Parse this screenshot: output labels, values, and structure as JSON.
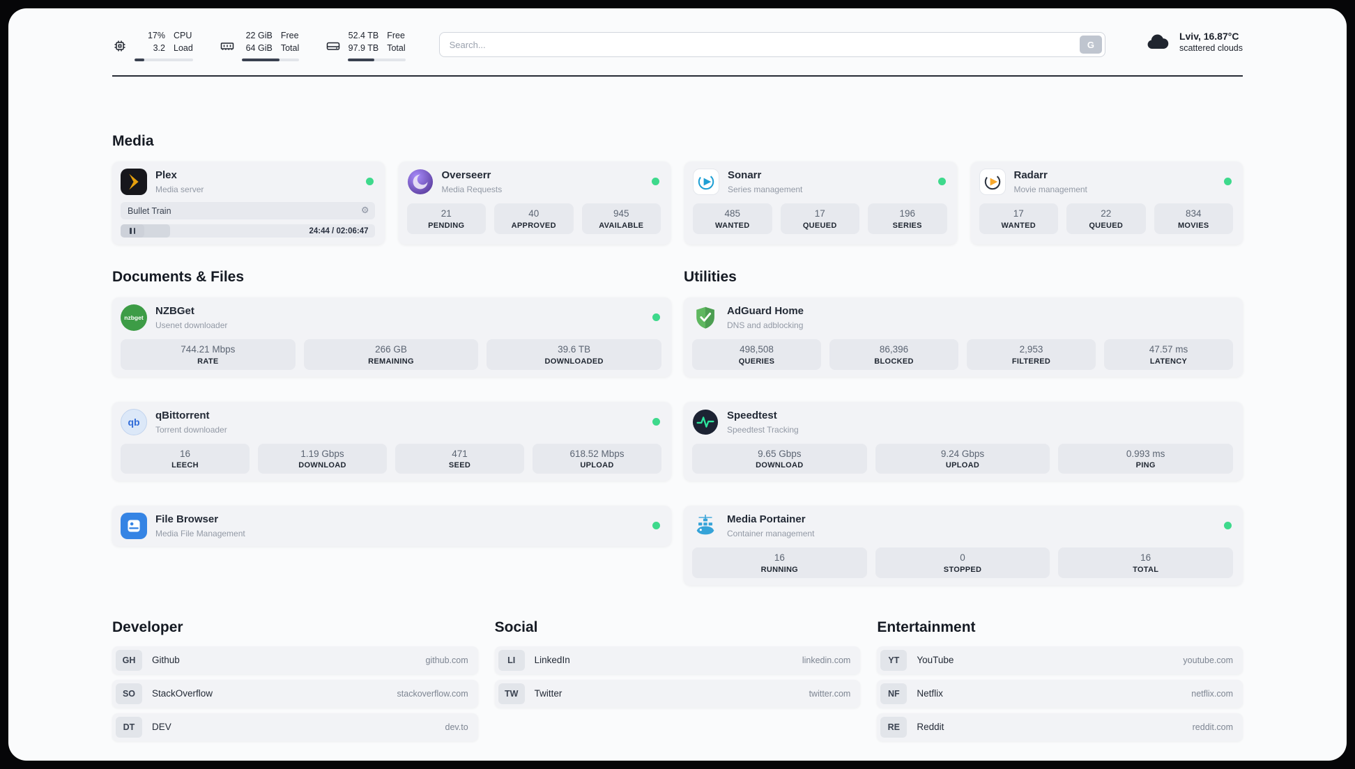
{
  "header": {
    "cpu": {
      "top_value": "17%",
      "bottom_value": "3.2",
      "top_label": "CPU",
      "bottom_label": "Load",
      "progress": 17
    },
    "ram": {
      "top_value": "22 GiB",
      "bottom_value": "64 GiB",
      "top_label": "Free",
      "bottom_label": "Total",
      "progress": 66
    },
    "disk": {
      "top_value": "52.4 TB",
      "bottom_value": "97.9 TB",
      "top_label": "Free",
      "bottom_label": "Total",
      "progress": 46
    },
    "search": {
      "placeholder": "Search...",
      "button_label": "G"
    },
    "weather": {
      "location": "Lviv, 16.87°C",
      "condition": "scattered clouds"
    }
  },
  "sections": {
    "media": "Media",
    "documents": "Documents & Files",
    "utilities": "Utilities",
    "developer": "Developer",
    "social": "Social",
    "entertainment": "Entertainment"
  },
  "apps": {
    "plex": {
      "name": "Plex",
      "desc": "Media server",
      "media_title": "Bullet Train",
      "time": "24:44 / 02:06:47",
      "progress": 19.5
    },
    "overseerr": {
      "name": "Overseerr",
      "desc": "Media Requests",
      "stats": [
        {
          "value": "21",
          "label": "PENDING"
        },
        {
          "value": "40",
          "label": "APPROVED"
        },
        {
          "value": "945",
          "label": "AVAILABLE"
        }
      ]
    },
    "sonarr": {
      "name": "Sonarr",
      "desc": "Series management",
      "stats": [
        {
          "value": "485",
          "label": "WANTED"
        },
        {
          "value": "17",
          "label": "QUEUED"
        },
        {
          "value": "196",
          "label": "SERIES"
        }
      ]
    },
    "radarr": {
      "name": "Radarr",
      "desc": "Movie management",
      "stats": [
        {
          "value": "17",
          "label": "WANTED"
        },
        {
          "value": "22",
          "label": "QUEUED"
        },
        {
          "value": "834",
          "label": "MOVIES"
        }
      ]
    },
    "nzbget": {
      "name": "NZBGet",
      "desc": "Usenet downloader",
      "icon_text": "nzbget",
      "stats": [
        {
          "value": "744.21 Mbps",
          "label": "RATE"
        },
        {
          "value": "266 GB",
          "label": "REMAINING"
        },
        {
          "value": "39.6 TB",
          "label": "DOWNLOADED"
        }
      ]
    },
    "qbittorrent": {
      "name": "qBittorrent",
      "desc": "Torrent downloader",
      "icon_text": "qb",
      "stats": [
        {
          "value": "16",
          "label": "LEECH"
        },
        {
          "value": "1.19 Gbps",
          "label": "DOWNLOAD"
        },
        {
          "value": "471",
          "label": "SEED"
        },
        {
          "value": "618.52 Mbps",
          "label": "UPLOAD"
        }
      ]
    },
    "filebrowser": {
      "name": "File Browser",
      "desc": "Media File Management"
    },
    "adguard": {
      "name": "AdGuard Home",
      "desc": "DNS and adblocking",
      "stats": [
        {
          "value": "498,508",
          "label": "QUERIES"
        },
        {
          "value": "86,396",
          "label": "BLOCKED"
        },
        {
          "value": "2,953",
          "label": "FILTERED"
        },
        {
          "value": "47.57 ms",
          "label": "LATENCY"
        }
      ]
    },
    "speedtest": {
      "name": "Speedtest",
      "desc": "Speedtest Tracking",
      "stats": [
        {
          "value": "9.65 Gbps",
          "label": "DOWNLOAD"
        },
        {
          "value": "9.24 Gbps",
          "label": "UPLOAD"
        },
        {
          "value": "0.993 ms",
          "label": "PING"
        }
      ]
    },
    "portainer": {
      "name": "Media Portainer",
      "desc": "Container management",
      "stats": [
        {
          "value": "16",
          "label": "RUNNING"
        },
        {
          "value": "0",
          "label": "STOPPED"
        },
        {
          "value": "16",
          "label": "TOTAL"
        }
      ]
    }
  },
  "links": {
    "developer": [
      {
        "abbr": "GH",
        "name": "Github",
        "url": "github.com"
      },
      {
        "abbr": "SO",
        "name": "StackOverflow",
        "url": "stackoverflow.com"
      },
      {
        "abbr": "DT",
        "name": "DEV",
        "url": "dev.to"
      }
    ],
    "social": [
      {
        "abbr": "LI",
        "name": "LinkedIn",
        "url": "linkedin.com"
      },
      {
        "abbr": "TW",
        "name": "Twitter",
        "url": "twitter.com"
      }
    ],
    "entertainment": [
      {
        "abbr": "YT",
        "name": "YouTube",
        "url": "youtube.com"
      },
      {
        "abbr": "NF",
        "name": "Netflix",
        "url": "netflix.com"
      },
      {
        "abbr": "RE",
        "name": "Reddit",
        "url": "reddit.com"
      }
    ]
  },
  "colors": {
    "status_online": "#3ed98c"
  }
}
